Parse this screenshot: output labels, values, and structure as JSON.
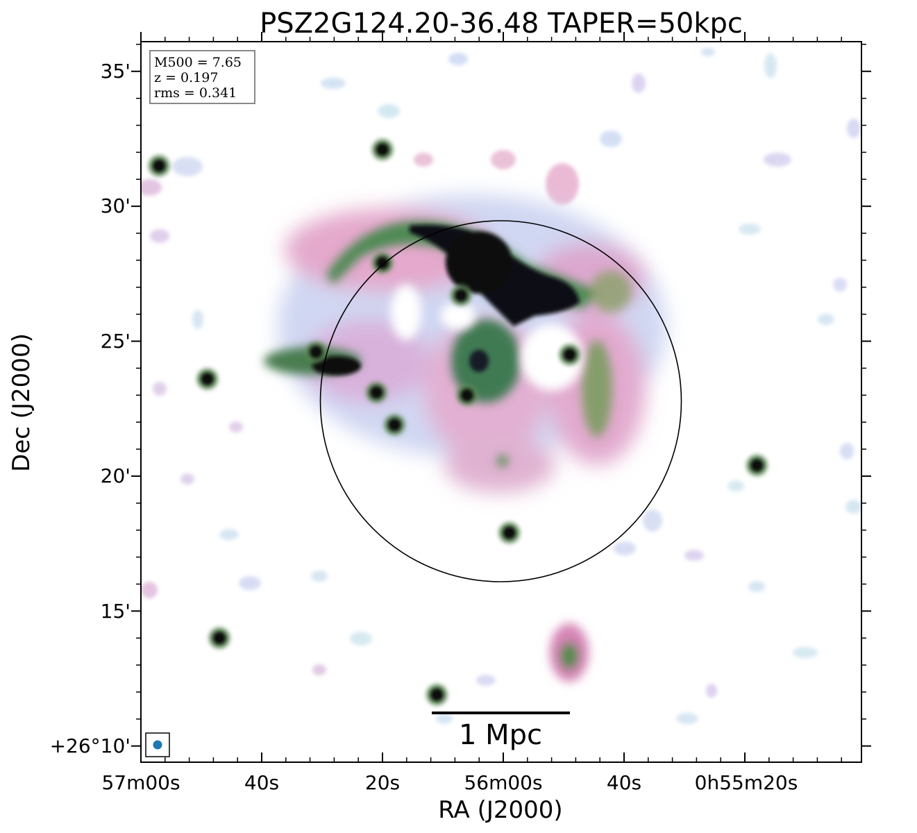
{
  "chart_data": {
    "type": "heatmap",
    "title": "PSZ2G124.20-36.48 TAPER=50kpc",
    "xlabel": "RA (J2000)",
    "ylabel": "Dec (J2000)",
    "x_tick_labels": [
      "57m00s",
      "40s",
      "20s",
      "56m00s",
      "40s",
      "0h55m20s"
    ],
    "y_tick_labels": [
      "+26°10'",
      "15'",
      "20'",
      "25'",
      "30'",
      "35'"
    ],
    "y_ticks_arcmin": [
      10,
      15,
      20,
      25,
      30,
      35
    ],
    "dec_range_arcmin": [
      9.4,
      36.1
    ],
    "colormap": "cubehelix-like (white → light blue → pink → green → black)",
    "info_box": {
      "lines": [
        "M500 = 7.65",
        "z = 0.197",
        "rms = 0.341"
      ],
      "placement": "top-left"
    },
    "scale_bar": {
      "label": "1 Mpc",
      "placement": "bottom-center"
    },
    "beam": {
      "placement": "bottom-left",
      "color": "#1f77b4"
    },
    "circle": {
      "center_ra": "0h56m00s",
      "center_dec_arcmin": 22.7,
      "radius_arcmin": 6.7
    },
    "compact_sources": [
      {
        "ra": "0h56m57s",
        "dec_arcmin": 31.5
      },
      {
        "ra": "0h56m49s",
        "dec_arcmin": 23.6
      },
      {
        "ra": "0h56m31s",
        "dec_arcmin": 24.6
      },
      {
        "ra": "0h56m20s",
        "dec_arcmin": 27.9
      },
      {
        "ra": "0h56m21s",
        "dec_arcmin": 23.1
      },
      {
        "ra": "0h56m18s",
        "dec_arcmin": 21.9
      },
      {
        "ra": "0h56m07s",
        "dec_arcmin": 26.7
      },
      {
        "ra": "0h56m06s",
        "dec_arcmin": 23.0
      },
      {
        "ra": "0h55m49s",
        "dec_arcmin": 24.5
      },
      {
        "ra": "0h55m59s",
        "dec_arcmin": 17.9
      },
      {
        "ra": "0h56m11s",
        "dec_arcmin": 11.9
      },
      {
        "ra": "0h56m47s",
        "dec_arcmin": 14.0
      },
      {
        "ra": "0h55m18s",
        "dec_arcmin": 20.4
      },
      {
        "ra": "0h56m20s",
        "dec_arcmin": 32.1
      }
    ],
    "extended_emission": [
      {
        "name": "north-arc",
        "ra": "0h56m00s",
        "dec_arcmin": 27.5
      },
      {
        "name": "western-relic",
        "ra": "0h55m44s",
        "dec_arcmin": 23.0
      },
      {
        "name": "eastern-tail",
        "ra": "0h56m27s",
        "dec_arcmin": 24.0
      },
      {
        "name": "southern-source",
        "ra": "0h55m52s",
        "dec_arcmin": 13.2
      }
    ],
    "grid": false
  }
}
